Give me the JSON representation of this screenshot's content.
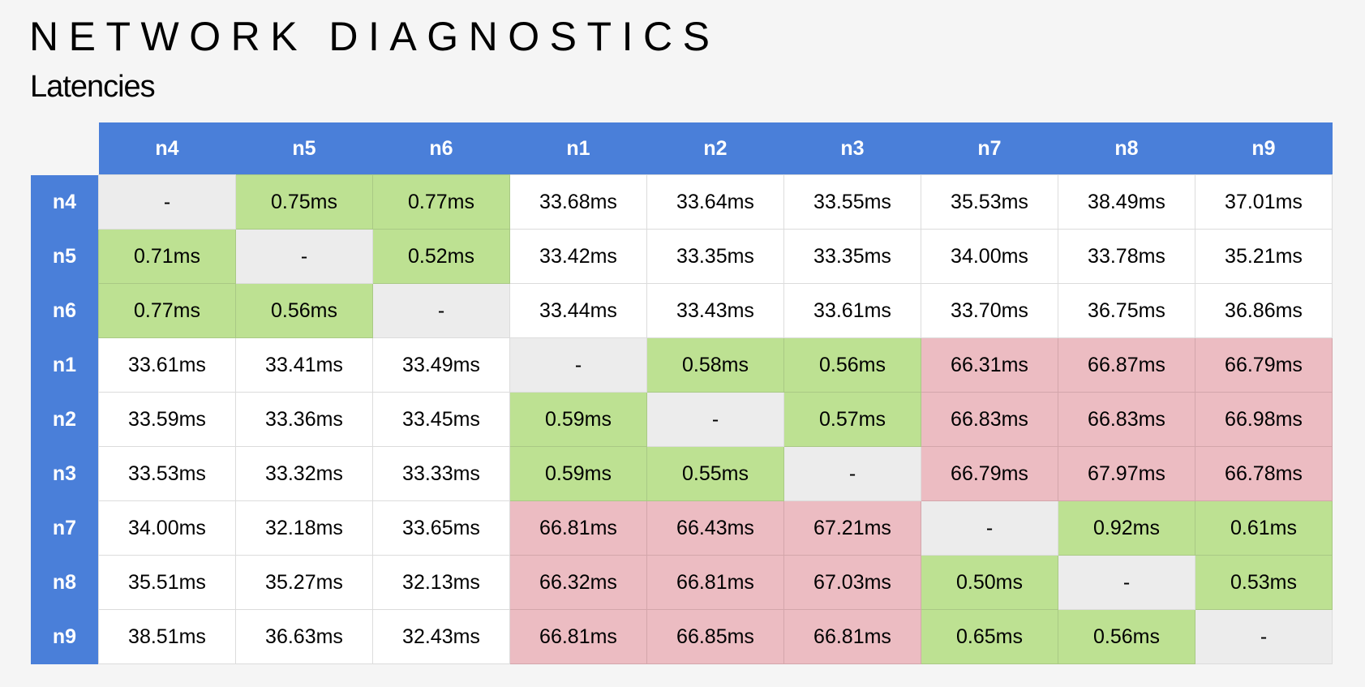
{
  "title": "NETWORK DIAGNOSTICS",
  "subtitle": "Latencies",
  "colors": {
    "header": "#4a7fd9",
    "good": "#bde192",
    "bad": "#ecbcc2",
    "diagonal": "#ececec",
    "normal": "#ffffff"
  },
  "nodes": [
    "n4",
    "n5",
    "n6",
    "n1",
    "n2",
    "n3",
    "n7",
    "n8",
    "n9"
  ],
  "rows": [
    {
      "node": "n4",
      "cells": [
        {
          "v": "-",
          "s": "diag"
        },
        {
          "v": "0.75ms",
          "s": "good"
        },
        {
          "v": "0.77ms",
          "s": "good"
        },
        {
          "v": "33.68ms",
          "s": "norm"
        },
        {
          "v": "33.64ms",
          "s": "norm"
        },
        {
          "v": "33.55ms",
          "s": "norm"
        },
        {
          "v": "35.53ms",
          "s": "norm"
        },
        {
          "v": "38.49ms",
          "s": "norm"
        },
        {
          "v": "37.01ms",
          "s": "norm"
        }
      ]
    },
    {
      "node": "n5",
      "cells": [
        {
          "v": "0.71ms",
          "s": "good"
        },
        {
          "v": "-",
          "s": "diag"
        },
        {
          "v": "0.52ms",
          "s": "good"
        },
        {
          "v": "33.42ms",
          "s": "norm"
        },
        {
          "v": "33.35ms",
          "s": "norm"
        },
        {
          "v": "33.35ms",
          "s": "norm"
        },
        {
          "v": "34.00ms",
          "s": "norm"
        },
        {
          "v": "33.78ms",
          "s": "norm"
        },
        {
          "v": "35.21ms",
          "s": "norm"
        }
      ]
    },
    {
      "node": "n6",
      "cells": [
        {
          "v": "0.77ms",
          "s": "good"
        },
        {
          "v": "0.56ms",
          "s": "good"
        },
        {
          "v": "-",
          "s": "diag"
        },
        {
          "v": "33.44ms",
          "s": "norm"
        },
        {
          "v": "33.43ms",
          "s": "norm"
        },
        {
          "v": "33.61ms",
          "s": "norm"
        },
        {
          "v": "33.70ms",
          "s": "norm"
        },
        {
          "v": "36.75ms",
          "s": "norm"
        },
        {
          "v": "36.86ms",
          "s": "norm"
        }
      ]
    },
    {
      "node": "n1",
      "cells": [
        {
          "v": "33.61ms",
          "s": "norm"
        },
        {
          "v": "33.41ms",
          "s": "norm"
        },
        {
          "v": "33.49ms",
          "s": "norm"
        },
        {
          "v": "-",
          "s": "diag"
        },
        {
          "v": "0.58ms",
          "s": "good"
        },
        {
          "v": "0.56ms",
          "s": "good"
        },
        {
          "v": "66.31ms",
          "s": "bad"
        },
        {
          "v": "66.87ms",
          "s": "bad"
        },
        {
          "v": "66.79ms",
          "s": "bad"
        }
      ]
    },
    {
      "node": "n2",
      "cells": [
        {
          "v": "33.59ms",
          "s": "norm"
        },
        {
          "v": "33.36ms",
          "s": "norm"
        },
        {
          "v": "33.45ms",
          "s": "norm"
        },
        {
          "v": "0.59ms",
          "s": "good"
        },
        {
          "v": "-",
          "s": "diag"
        },
        {
          "v": "0.57ms",
          "s": "good"
        },
        {
          "v": "66.83ms",
          "s": "bad"
        },
        {
          "v": "66.83ms",
          "s": "bad"
        },
        {
          "v": "66.98ms",
          "s": "bad"
        }
      ]
    },
    {
      "node": "n3",
      "cells": [
        {
          "v": "33.53ms",
          "s": "norm"
        },
        {
          "v": "33.32ms",
          "s": "norm"
        },
        {
          "v": "33.33ms",
          "s": "norm"
        },
        {
          "v": "0.59ms",
          "s": "good"
        },
        {
          "v": "0.55ms",
          "s": "good"
        },
        {
          "v": "-",
          "s": "diag"
        },
        {
          "v": "66.79ms",
          "s": "bad"
        },
        {
          "v": "67.97ms",
          "s": "bad"
        },
        {
          "v": "66.78ms",
          "s": "bad"
        }
      ]
    },
    {
      "node": "n7",
      "cells": [
        {
          "v": "34.00ms",
          "s": "norm"
        },
        {
          "v": "32.18ms",
          "s": "norm"
        },
        {
          "v": "33.65ms",
          "s": "norm"
        },
        {
          "v": "66.81ms",
          "s": "bad"
        },
        {
          "v": "66.43ms",
          "s": "bad"
        },
        {
          "v": "67.21ms",
          "s": "bad"
        },
        {
          "v": "-",
          "s": "diag"
        },
        {
          "v": "0.92ms",
          "s": "good"
        },
        {
          "v": "0.61ms",
          "s": "good"
        }
      ]
    },
    {
      "node": "n8",
      "cells": [
        {
          "v": "35.51ms",
          "s": "norm"
        },
        {
          "v": "35.27ms",
          "s": "norm"
        },
        {
          "v": "32.13ms",
          "s": "norm"
        },
        {
          "v": "66.32ms",
          "s": "bad"
        },
        {
          "v": "66.81ms",
          "s": "bad"
        },
        {
          "v": "67.03ms",
          "s": "bad"
        },
        {
          "v": "0.50ms",
          "s": "good"
        },
        {
          "v": "-",
          "s": "diag"
        },
        {
          "v": "0.53ms",
          "s": "good"
        }
      ]
    },
    {
      "node": "n9",
      "cells": [
        {
          "v": "38.51ms",
          "s": "norm"
        },
        {
          "v": "36.63ms",
          "s": "norm"
        },
        {
          "v": "32.43ms",
          "s": "norm"
        },
        {
          "v": "66.81ms",
          "s": "bad"
        },
        {
          "v": "66.85ms",
          "s": "bad"
        },
        {
          "v": "66.81ms",
          "s": "bad"
        },
        {
          "v": "0.65ms",
          "s": "good"
        },
        {
          "v": "0.56ms",
          "s": "good"
        },
        {
          "v": "-",
          "s": "diag"
        }
      ]
    }
  ]
}
